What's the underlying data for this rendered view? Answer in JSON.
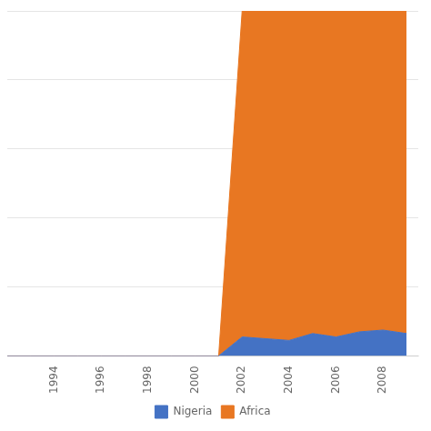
{
  "chart_data": {
    "type": "area",
    "stacked": true,
    "x": [
      1992,
      1993,
      1994,
      1995,
      1996,
      1997,
      1998,
      1999,
      2000,
      2001,
      2002,
      2003,
      2004,
      2005,
      2006,
      2007,
      2008,
      2009
    ],
    "series": [
      {
        "name": "Nigeria",
        "color": "#4472C4",
        "values": [
          0,
          0,
          0,
          0,
          0,
          0,
          0,
          0,
          0,
          0,
          5.5,
          5.0,
          4.5,
          6.5,
          5.5,
          7.0,
          7.5,
          6.5
        ]
      },
      {
        "name": "Africa",
        "color": "#E87722",
        "values": [
          0,
          0,
          0,
          0,
          0,
          0,
          0,
          0,
          0,
          0,
          94.5,
          95.0,
          95.5,
          93.5,
          94.5,
          93.0,
          92.5,
          93.5
        ]
      }
    ],
    "xlim": [
      1992,
      2009.5
    ],
    "xticks": [
      1994,
      1996,
      1998,
      2000,
      2002,
      2004,
      2006,
      2008
    ],
    "ylim": [
      0,
      100
    ],
    "yticks": [
      0,
      20,
      40,
      60,
      80,
      100
    ],
    "grid": true,
    "legend": "bottom",
    "tick_labels": "x"
  }
}
